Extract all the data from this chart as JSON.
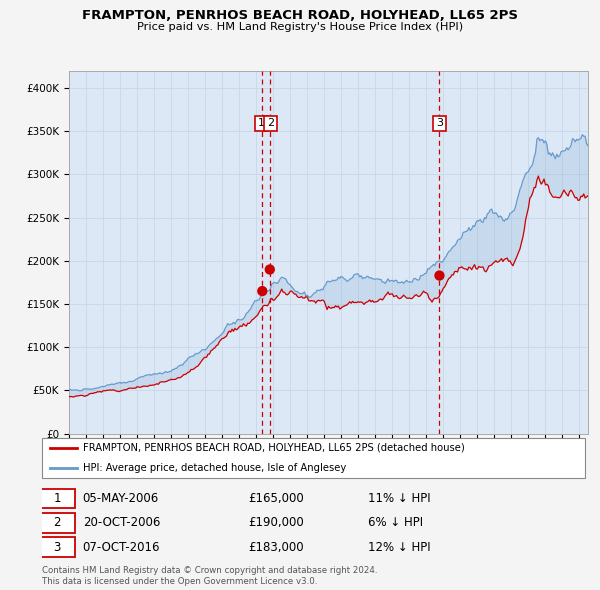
{
  "title": "FRAMPTON, PENRHOS BEACH ROAD, HOLYHEAD, LL65 2PS",
  "subtitle": "Price paid vs. HM Land Registry's House Price Index (HPI)",
  "legend_red": "FRAMPTON, PENRHOS BEACH ROAD, HOLYHEAD, LL65 2PS (detached house)",
  "legend_blue": "HPI: Average price, detached house, Isle of Anglesey",
  "transactions": [
    {
      "num": "1",
      "date": "05-MAY-2006",
      "price": 165000,
      "pricefmt": "£165,000",
      "label": "11% ↓ HPI",
      "x_val": 2006.36
    },
    {
      "num": "2",
      "date": "20-OCT-2006",
      "price": 190000,
      "pricefmt": "£190,000",
      "label": "6% ↓ HPI",
      "x_val": 2006.8
    },
    {
      "num": "3",
      "date": "07-OCT-2016",
      "price": 183000,
      "pricefmt": "£183,000",
      "label": "12% ↓ HPI",
      "x_val": 2016.77
    }
  ],
  "xmin": 1995.0,
  "xmax": 2025.5,
  "ymin": 0,
  "ymax": 420000,
  "yticks": [
    0,
    50000,
    100000,
    150000,
    200000,
    250000,
    300000,
    350000,
    400000
  ],
  "ytick_labels": [
    "£0",
    "£50K",
    "£100K",
    "£150K",
    "£200K",
    "£250K",
    "£300K",
    "£350K",
    "£400K"
  ],
  "grid_color": "#c8d8e8",
  "bg_color": "#dce8f5",
  "fig_bg": "#f4f4f4",
  "red_color": "#cc0000",
  "blue_color": "#6699cc",
  "dashed_color": "#cc0000",
  "footer": "Contains HM Land Registry data © Crown copyright and database right 2024.\nThis data is licensed under the Open Government Licence v3.0."
}
